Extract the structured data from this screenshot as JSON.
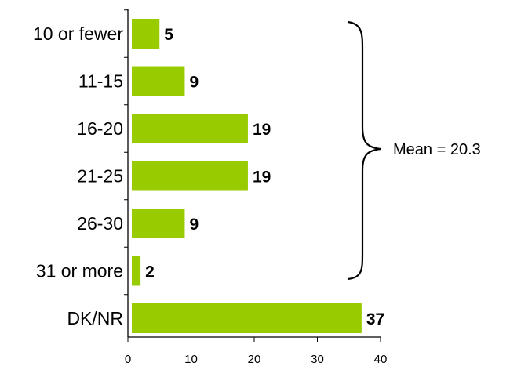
{
  "chart_data": {
    "type": "bar",
    "orientation": "horizontal",
    "categories": [
      "10 or fewer",
      "11-15",
      "16-20",
      "21-25",
      "26-30",
      "31 or more",
      "DK/NR"
    ],
    "values": [
      5,
      9,
      19,
      19,
      9,
      2,
      37
    ],
    "xlim": [
      0,
      40
    ],
    "xticks": [
      0,
      10,
      20,
      30,
      40
    ],
    "grid": false,
    "bar_color": "#99cc00",
    "annotation": {
      "text": "Mean = 20.3",
      "brace_spans": [
        "10 or fewer",
        "31 or more"
      ]
    }
  }
}
